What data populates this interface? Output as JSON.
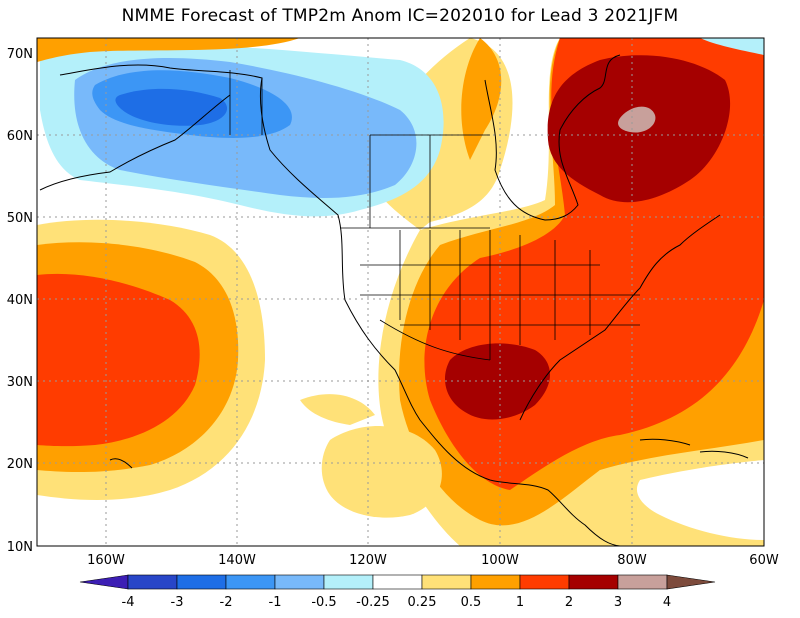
{
  "title": "NMME Forecast of TMP2m Anom IC=202010 for Lead 3 2021JFM",
  "lat_labels": [
    "70N",
    "60N",
    "50N",
    "40N",
    "30N",
    "20N",
    "10N"
  ],
  "lon_labels": [
    "160W",
    "140W",
    "120W",
    "100W",
    "80W",
    "60W"
  ],
  "colorbar": {
    "ticks": [
      "-4",
      "-3",
      "-2",
      "-1",
      "-0.5",
      "-0.25",
      "0.25",
      "0.5",
      "1",
      "2",
      "3",
      "4"
    ],
    "colors": [
      "#3c1eb4",
      "#2846c8",
      "#1e6ee6",
      "#3c96f5",
      "#78b9fa",
      "#b4f0fa",
      "#ffffff",
      "#ffe178",
      "#ffa000",
      "#ff3c00",
      "#a50000",
      "#c8a09b",
      "#7d4b3c"
    ]
  }
}
